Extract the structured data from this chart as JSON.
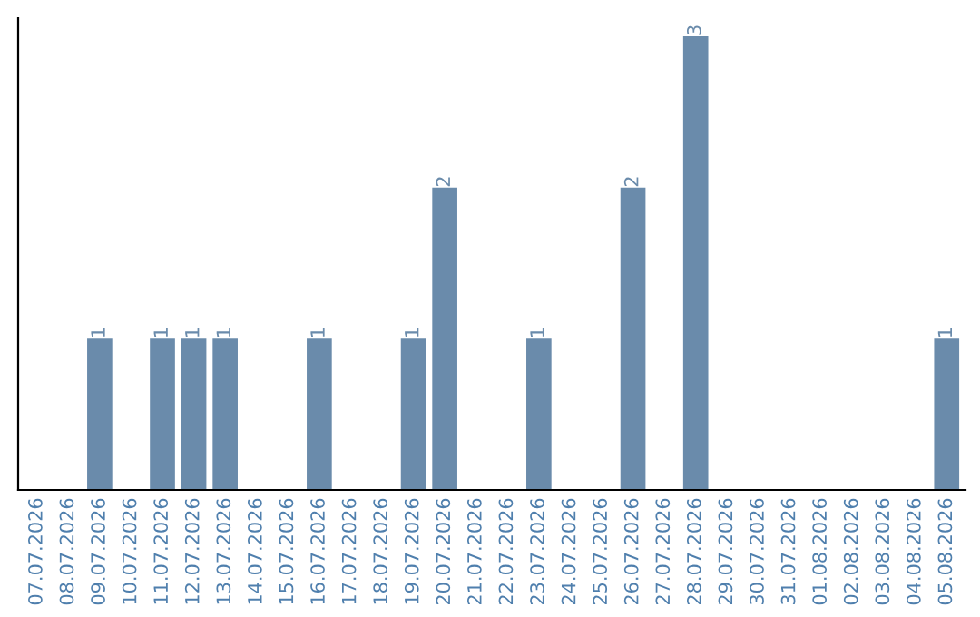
{
  "chart_data": {
    "type": "bar",
    "categories": [
      "07.07.2026",
      "08.07.2026",
      "09.07.2026",
      "10.07.2026",
      "11.07.2026",
      "12.07.2026",
      "13.07.2026",
      "14.07.2026",
      "15.07.2026",
      "16.07.2026",
      "17.07.2026",
      "18.07.2026",
      "19.07.2026",
      "20.07.2026",
      "21.07.2026",
      "22.07.2026",
      "23.07.2026",
      "24.07.2026",
      "25.07.2026",
      "26.07.2026",
      "27.07.2026",
      "28.07.2026",
      "29.07.2026",
      "30.07.2026",
      "31.07.2026",
      "01.08.2026",
      "02.08.2026",
      "03.08.2026",
      "04.08.2026",
      "05.08.2026"
    ],
    "values": [
      0,
      0,
      1,
      0,
      1,
      1,
      1,
      0,
      0,
      1,
      0,
      0,
      1,
      2,
      0,
      0,
      1,
      0,
      0,
      2,
      0,
      3,
      0,
      0,
      0,
      0,
      0,
      0,
      0,
      1
    ],
    "value_labels": [
      null,
      null,
      "1",
      null,
      "1",
      "1",
      "1",
      null,
      null,
      "1",
      null,
      null,
      "1",
      "2",
      null,
      null,
      "1",
      null,
      null,
      "2",
      null,
      "3",
      null,
      null,
      null,
      null,
      null,
      null,
      null,
      "1"
    ],
    "color": "#6a8bab",
    "ylim": [
      0,
      3.12
    ],
    "tick_labels": "x",
    "grid": false
  }
}
